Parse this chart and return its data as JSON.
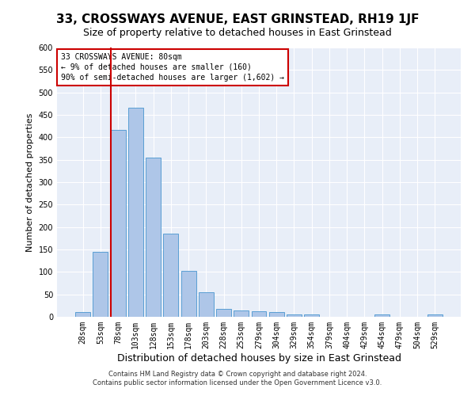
{
  "title": "33, CROSSWAYS AVENUE, EAST GRINSTEAD, RH19 1JF",
  "subtitle": "Size of property relative to detached houses in East Grinstead",
  "xlabel": "Distribution of detached houses by size in East Grinstead",
  "ylabel": "Number of detached properties",
  "footer_line1": "Contains HM Land Registry data © Crown copyright and database right 2024.",
  "footer_line2": "Contains public sector information licensed under the Open Government Licence v3.0.",
  "bin_labels": [
    "28sqm",
    "53sqm",
    "78sqm",
    "103sqm",
    "128sqm",
    "153sqm",
    "178sqm",
    "203sqm",
    "228sqm",
    "253sqm",
    "279sqm",
    "304sqm",
    "329sqm",
    "354sqm",
    "379sqm",
    "404sqm",
    "429sqm",
    "454sqm",
    "479sqm",
    "504sqm",
    "529sqm"
  ],
  "bar_values": [
    10,
    145,
    417,
    465,
    355,
    185,
    103,
    55,
    17,
    15,
    12,
    10,
    6,
    5,
    0,
    0,
    0,
    5,
    0,
    0,
    5
  ],
  "bar_color": "#aec6e8",
  "bar_edgecolor": "#5a9fd4",
  "vline_color": "#cc0000",
  "annotation_text": "33 CROSSWAYS AVENUE: 80sqm\n← 9% of detached houses are smaller (160)\n90% of semi-detached houses are larger (1,602) →",
  "annotation_box_color": "#ffffff",
  "annotation_box_edgecolor": "#cc0000",
  "ylim": [
    0,
    600
  ],
  "yticks": [
    0,
    50,
    100,
    150,
    200,
    250,
    300,
    350,
    400,
    450,
    500,
    550,
    600
  ],
  "background_color": "#e8eef8",
  "grid_color": "#ffffff",
  "title_fontsize": 11,
  "subtitle_fontsize": 9,
  "ylabel_fontsize": 8,
  "xlabel_fontsize": 9,
  "tick_fontsize": 7,
  "annotation_fontsize": 7,
  "footer_fontsize": 6
}
